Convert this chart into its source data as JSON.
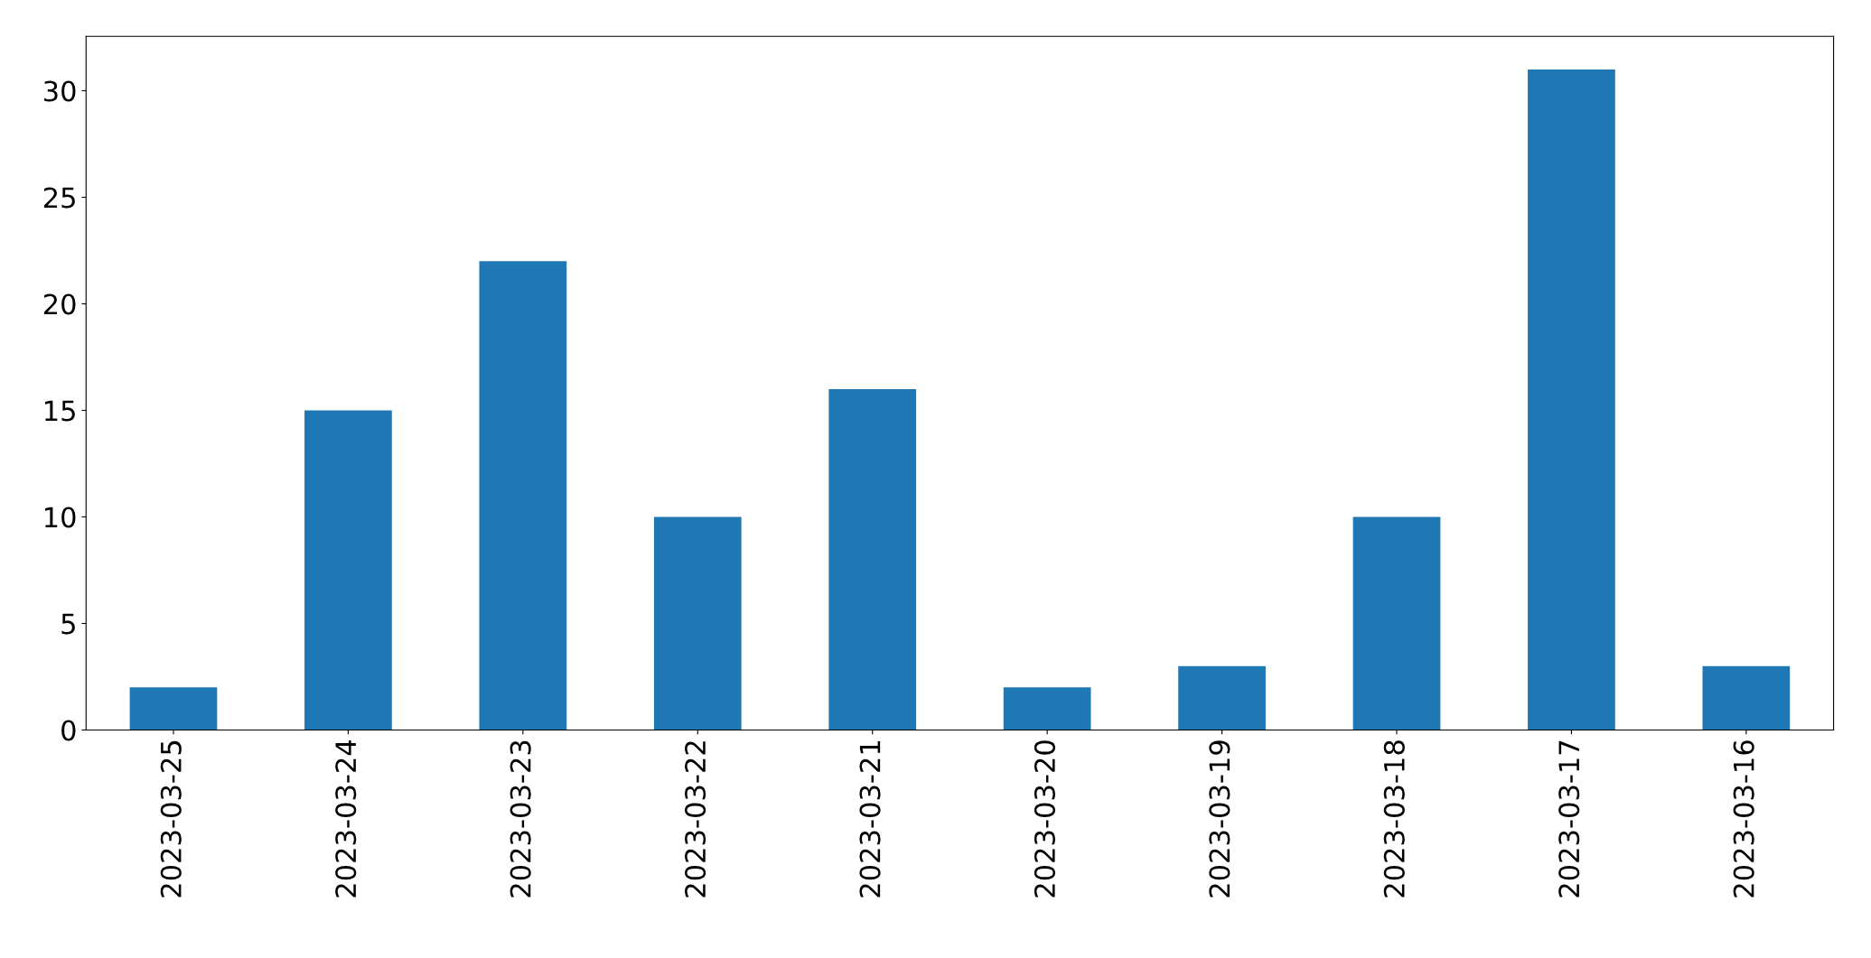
{
  "chart_data": {
    "type": "bar",
    "categories": [
      "2023-03-25",
      "2023-03-24",
      "2023-03-23",
      "2023-03-22",
      "2023-03-21",
      "2023-03-20",
      "2023-03-19",
      "2023-03-18",
      "2023-03-17",
      "2023-03-16"
    ],
    "values": [
      2,
      15,
      22,
      10,
      16,
      2,
      3,
      10,
      31,
      3
    ],
    "color": "#1f77b4",
    "ylim": [
      0,
      32.55
    ],
    "yticks": [
      0,
      5,
      10,
      15,
      20,
      25,
      30
    ],
    "grid": false,
    "legend": false
  }
}
